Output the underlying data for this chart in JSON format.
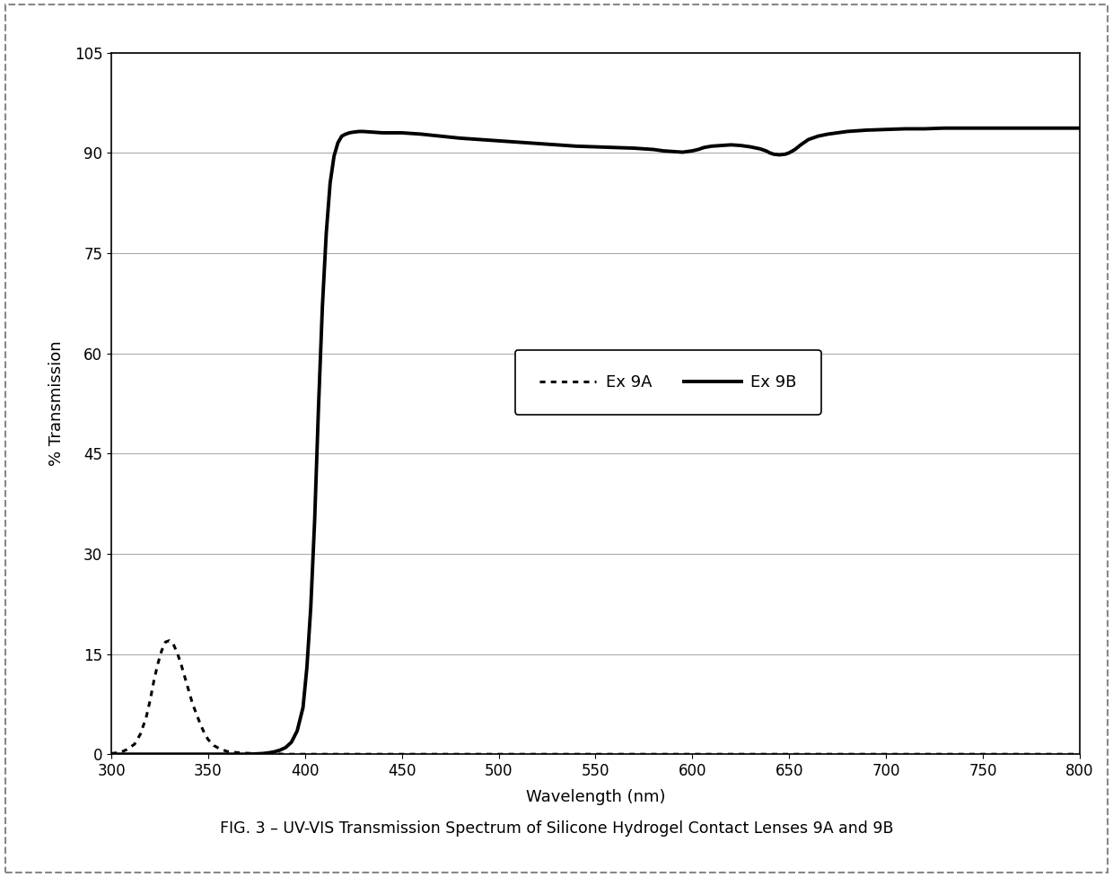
{
  "title": "FIG. 3 – UV-VIS Transmission Spectrum of Silicone Hydrogel Contact Lenses 9A and 9B",
  "xlabel": "Wavelength (nm)",
  "ylabel": "% Transmission",
  "xlim": [
    300,
    800
  ],
  "ylim": [
    0,
    105
  ],
  "yticks": [
    0,
    15,
    30,
    45,
    60,
    75,
    90,
    105
  ],
  "xticks": [
    300,
    350,
    400,
    450,
    500,
    550,
    600,
    650,
    700,
    750,
    800
  ],
  "legend_labels": [
    "Ex 9A",
    "Ex 9B"
  ],
  "background_color": "#ffffff",
  "line_color": "#000000",
  "grid_color": "#aaaaaa",
  "ex9a": {
    "wavelengths": [
      300,
      305,
      308,
      312,
      315,
      318,
      320,
      322,
      324,
      326,
      328,
      330,
      332,
      334,
      336,
      338,
      340,
      342,
      344,
      346,
      348,
      350,
      353,
      356,
      360,
      365,
      370,
      375,
      380,
      385,
      390,
      395,
      400,
      420,
      800
    ],
    "transmission": [
      0.1,
      0.3,
      0.7,
      1.5,
      3.0,
      5.5,
      8.0,
      11.0,
      13.5,
      15.5,
      16.8,
      17.0,
      16.5,
      15.2,
      13.5,
      11.5,
      9.5,
      7.5,
      6.0,
      4.5,
      3.2,
      2.2,
      1.3,
      0.8,
      0.4,
      0.25,
      0.15,
      0.1,
      0.1,
      0.05,
      0.0,
      0.0,
      0.0,
      0.0,
      0.0
    ]
  },
  "ex9b": {
    "wavelengths": [
      300,
      310,
      320,
      330,
      340,
      350,
      360,
      370,
      375,
      378,
      381,
      384,
      387,
      390,
      393,
      396,
      399,
      401,
      403,
      405,
      407,
      409,
      411,
      413,
      415,
      417,
      419,
      421,
      423,
      425,
      428,
      430,
      435,
      440,
      445,
      450,
      455,
      460,
      470,
      480,
      490,
      500,
      510,
      520,
      530,
      540,
      550,
      560,
      570,
      575,
      580,
      585,
      590,
      595,
      600,
      603,
      606,
      610,
      620,
      625,
      630,
      635,
      638,
      640,
      642,
      645,
      648,
      650,
      653,
      656,
      660,
      665,
      670,
      675,
      680,
      690,
      700,
      710,
      720,
      730,
      740,
      750,
      760,
      770,
      780,
      790,
      800
    ],
    "transmission": [
      0.0,
      0.0,
      0.0,
      0.0,
      0.0,
      0.0,
      0.0,
      0.0,
      0.05,
      0.1,
      0.2,
      0.35,
      0.6,
      1.0,
      1.8,
      3.5,
      7.0,
      13.0,
      22.0,
      35.0,
      52.0,
      67.0,
      78.0,
      85.5,
      89.5,
      91.5,
      92.5,
      92.8,
      93.0,
      93.1,
      93.2,
      93.2,
      93.1,
      93.0,
      93.0,
      93.0,
      92.9,
      92.8,
      92.5,
      92.2,
      92.0,
      91.8,
      91.6,
      91.4,
      91.2,
      91.0,
      90.9,
      90.8,
      90.7,
      90.6,
      90.5,
      90.3,
      90.2,
      90.1,
      90.3,
      90.5,
      90.8,
      91.0,
      91.2,
      91.1,
      90.9,
      90.6,
      90.3,
      90.0,
      89.8,
      89.7,
      89.8,
      90.0,
      90.5,
      91.2,
      92.0,
      92.5,
      92.8,
      93.0,
      93.2,
      93.4,
      93.5,
      93.6,
      93.6,
      93.7,
      93.7,
      93.7,
      93.7,
      93.7,
      93.7,
      93.7,
      93.7
    ]
  }
}
